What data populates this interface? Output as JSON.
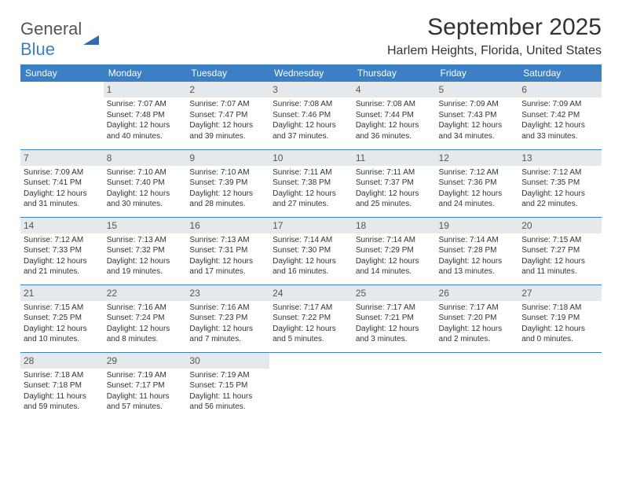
{
  "logo": {
    "text1": "General",
    "text2": "Blue"
  },
  "title": "September 2025",
  "location": "Harlem Heights, Florida, United States",
  "colors": {
    "header_bg": "#3b7fc4",
    "header_text": "#ffffff",
    "daynum_bg": "#e6e9ec",
    "daynum_text": "#555555",
    "row_divider": "#3b7fc4",
    "body_text": "#333333",
    "page_bg": "#ffffff"
  },
  "typography": {
    "title_fontsize": 30,
    "location_fontsize": 16,
    "weekday_fontsize": 12,
    "daynum_fontsize": 12,
    "cell_fontsize": 10
  },
  "weekdays": [
    "Sunday",
    "Monday",
    "Tuesday",
    "Wednesday",
    "Thursday",
    "Friday",
    "Saturday"
  ],
  "weeks": [
    [
      {
        "day": "",
        "sunrise": "",
        "sunset": "",
        "daylight": ""
      },
      {
        "day": "1",
        "sunrise": "Sunrise: 7:07 AM",
        "sunset": "Sunset: 7:48 PM",
        "daylight": "Daylight: 12 hours and 40 minutes."
      },
      {
        "day": "2",
        "sunrise": "Sunrise: 7:07 AM",
        "sunset": "Sunset: 7:47 PM",
        "daylight": "Daylight: 12 hours and 39 minutes."
      },
      {
        "day": "3",
        "sunrise": "Sunrise: 7:08 AM",
        "sunset": "Sunset: 7:46 PM",
        "daylight": "Daylight: 12 hours and 37 minutes."
      },
      {
        "day": "4",
        "sunrise": "Sunrise: 7:08 AM",
        "sunset": "Sunset: 7:44 PM",
        "daylight": "Daylight: 12 hours and 36 minutes."
      },
      {
        "day": "5",
        "sunrise": "Sunrise: 7:09 AM",
        "sunset": "Sunset: 7:43 PM",
        "daylight": "Daylight: 12 hours and 34 minutes."
      },
      {
        "day": "6",
        "sunrise": "Sunrise: 7:09 AM",
        "sunset": "Sunset: 7:42 PM",
        "daylight": "Daylight: 12 hours and 33 minutes."
      }
    ],
    [
      {
        "day": "7",
        "sunrise": "Sunrise: 7:09 AM",
        "sunset": "Sunset: 7:41 PM",
        "daylight": "Daylight: 12 hours and 31 minutes."
      },
      {
        "day": "8",
        "sunrise": "Sunrise: 7:10 AM",
        "sunset": "Sunset: 7:40 PM",
        "daylight": "Daylight: 12 hours and 30 minutes."
      },
      {
        "day": "9",
        "sunrise": "Sunrise: 7:10 AM",
        "sunset": "Sunset: 7:39 PM",
        "daylight": "Daylight: 12 hours and 28 minutes."
      },
      {
        "day": "10",
        "sunrise": "Sunrise: 7:11 AM",
        "sunset": "Sunset: 7:38 PM",
        "daylight": "Daylight: 12 hours and 27 minutes."
      },
      {
        "day": "11",
        "sunrise": "Sunrise: 7:11 AM",
        "sunset": "Sunset: 7:37 PM",
        "daylight": "Daylight: 12 hours and 25 minutes."
      },
      {
        "day": "12",
        "sunrise": "Sunrise: 7:12 AM",
        "sunset": "Sunset: 7:36 PM",
        "daylight": "Daylight: 12 hours and 24 minutes."
      },
      {
        "day": "13",
        "sunrise": "Sunrise: 7:12 AM",
        "sunset": "Sunset: 7:35 PM",
        "daylight": "Daylight: 12 hours and 22 minutes."
      }
    ],
    [
      {
        "day": "14",
        "sunrise": "Sunrise: 7:12 AM",
        "sunset": "Sunset: 7:33 PM",
        "daylight": "Daylight: 12 hours and 21 minutes."
      },
      {
        "day": "15",
        "sunrise": "Sunrise: 7:13 AM",
        "sunset": "Sunset: 7:32 PM",
        "daylight": "Daylight: 12 hours and 19 minutes."
      },
      {
        "day": "16",
        "sunrise": "Sunrise: 7:13 AM",
        "sunset": "Sunset: 7:31 PM",
        "daylight": "Daylight: 12 hours and 17 minutes."
      },
      {
        "day": "17",
        "sunrise": "Sunrise: 7:14 AM",
        "sunset": "Sunset: 7:30 PM",
        "daylight": "Daylight: 12 hours and 16 minutes."
      },
      {
        "day": "18",
        "sunrise": "Sunrise: 7:14 AM",
        "sunset": "Sunset: 7:29 PM",
        "daylight": "Daylight: 12 hours and 14 minutes."
      },
      {
        "day": "19",
        "sunrise": "Sunrise: 7:14 AM",
        "sunset": "Sunset: 7:28 PM",
        "daylight": "Daylight: 12 hours and 13 minutes."
      },
      {
        "day": "20",
        "sunrise": "Sunrise: 7:15 AM",
        "sunset": "Sunset: 7:27 PM",
        "daylight": "Daylight: 12 hours and 11 minutes."
      }
    ],
    [
      {
        "day": "21",
        "sunrise": "Sunrise: 7:15 AM",
        "sunset": "Sunset: 7:25 PM",
        "daylight": "Daylight: 12 hours and 10 minutes."
      },
      {
        "day": "22",
        "sunrise": "Sunrise: 7:16 AM",
        "sunset": "Sunset: 7:24 PM",
        "daylight": "Daylight: 12 hours and 8 minutes."
      },
      {
        "day": "23",
        "sunrise": "Sunrise: 7:16 AM",
        "sunset": "Sunset: 7:23 PM",
        "daylight": "Daylight: 12 hours and 7 minutes."
      },
      {
        "day": "24",
        "sunrise": "Sunrise: 7:17 AM",
        "sunset": "Sunset: 7:22 PM",
        "daylight": "Daylight: 12 hours and 5 minutes."
      },
      {
        "day": "25",
        "sunrise": "Sunrise: 7:17 AM",
        "sunset": "Sunset: 7:21 PM",
        "daylight": "Daylight: 12 hours and 3 minutes."
      },
      {
        "day": "26",
        "sunrise": "Sunrise: 7:17 AM",
        "sunset": "Sunset: 7:20 PM",
        "daylight": "Daylight: 12 hours and 2 minutes."
      },
      {
        "day": "27",
        "sunrise": "Sunrise: 7:18 AM",
        "sunset": "Sunset: 7:19 PM",
        "daylight": "Daylight: 12 hours and 0 minutes."
      }
    ],
    [
      {
        "day": "28",
        "sunrise": "Sunrise: 7:18 AM",
        "sunset": "Sunset: 7:18 PM",
        "daylight": "Daylight: 11 hours and 59 minutes."
      },
      {
        "day": "29",
        "sunrise": "Sunrise: 7:19 AM",
        "sunset": "Sunset: 7:17 PM",
        "daylight": "Daylight: 11 hours and 57 minutes."
      },
      {
        "day": "30",
        "sunrise": "Sunrise: 7:19 AM",
        "sunset": "Sunset: 7:15 PM",
        "daylight": "Daylight: 11 hours and 56 minutes."
      },
      {
        "day": "",
        "sunrise": "",
        "sunset": "",
        "daylight": ""
      },
      {
        "day": "",
        "sunrise": "",
        "sunset": "",
        "daylight": ""
      },
      {
        "day": "",
        "sunrise": "",
        "sunset": "",
        "daylight": ""
      },
      {
        "day": "",
        "sunrise": "",
        "sunset": "",
        "daylight": ""
      }
    ]
  ]
}
